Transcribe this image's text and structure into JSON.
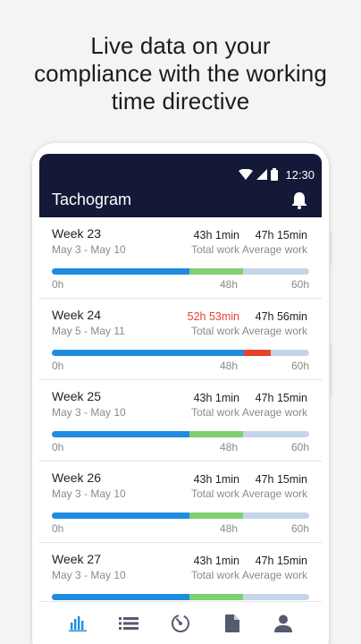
{
  "headline": {
    "line1": "Live data on your",
    "line2": "compliance with the working",
    "line3": "time directive"
  },
  "status_bar": {
    "time": "12:30",
    "icons": [
      "wifi-icon",
      "signal-icon",
      "battery-icon"
    ]
  },
  "app_bar": {
    "title": "Tachogram",
    "action_icon": "bell-icon"
  },
  "labels": {
    "total_work": "Total work",
    "average_work": "Average work"
  },
  "axis_ticks": {
    "start": "0h",
    "mid": "48h",
    "end": "60h"
  },
  "colors": {
    "app_bar": "#141937",
    "work": "#1e8ce0",
    "average": "#7ed071",
    "over_limit": "#e8412c",
    "remaining": "#c5d5e9"
  },
  "weeks": [
    {
      "title": "Week 23",
      "range": "May 3 - May 10",
      "total": "43h 1min",
      "average": "47h 15min",
      "over_limit": false,
      "work_fraction": 0.535,
      "average_fraction": 0.745
    },
    {
      "title": "Week 24",
      "range": "May 5 - May 11",
      "total": "52h 53min",
      "average": "47h 56min",
      "over_limit": true,
      "work_fraction": 0.745,
      "over_fraction": 0.85
    },
    {
      "title": "Week 25",
      "range": "May 3 - May 10",
      "total": "43h 1min",
      "average": "47h 15min",
      "over_limit": false,
      "work_fraction": 0.535,
      "average_fraction": 0.745
    },
    {
      "title": "Week 26",
      "range": "May 3 - May 10",
      "total": "43h 1min",
      "average": "47h 15min",
      "over_limit": false,
      "work_fraction": 0.535,
      "average_fraction": 0.745
    },
    {
      "title": "Week 27",
      "range": "May 3 - May 10",
      "total": "43h 1min",
      "average": "47h 15min",
      "over_limit": false,
      "work_fraction": 0.535,
      "average_fraction": 0.745
    }
  ],
  "bottom_nav": [
    {
      "icon": "bar-chart-icon",
      "active": true
    },
    {
      "icon": "list-icon",
      "active": false
    },
    {
      "icon": "timer-icon",
      "active": false
    },
    {
      "icon": "document-icon",
      "active": false
    },
    {
      "icon": "person-icon",
      "active": false
    }
  ]
}
